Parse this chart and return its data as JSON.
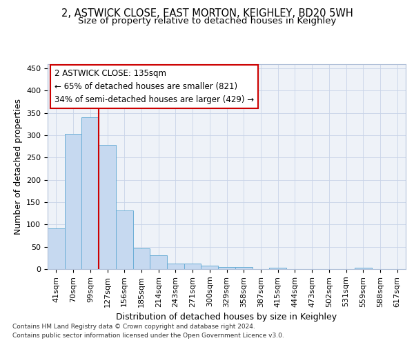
{
  "title1": "2, ASTWICK CLOSE, EAST MORTON, KEIGHLEY, BD20 5WH",
  "title2": "Size of property relative to detached houses in Keighley",
  "xlabel": "Distribution of detached houses by size in Keighley",
  "ylabel": "Number of detached properties",
  "categories": [
    "41sqm",
    "70sqm",
    "99sqm",
    "127sqm",
    "156sqm",
    "185sqm",
    "214sqm",
    "243sqm",
    "271sqm",
    "300sqm",
    "329sqm",
    "358sqm",
    "387sqm",
    "415sqm",
    "444sqm",
    "473sqm",
    "502sqm",
    "531sqm",
    "559sqm",
    "588sqm",
    "617sqm"
  ],
  "values": [
    91,
    303,
    340,
    278,
    131,
    47,
    31,
    13,
    13,
    8,
    5,
    5,
    0,
    3,
    0,
    0,
    0,
    0,
    3,
    0,
    0
  ],
  "bar_color": "#c6d9f0",
  "bar_edgecolor": "#6baed6",
  "bg_color": "#eef2f8",
  "vline_x_idx": 3,
  "vline_color": "#cc0000",
  "annotation_title": "2 ASTWICK CLOSE: 135sqm",
  "annotation_line2": "← 65% of detached houses are smaller (821)",
  "annotation_line3": "34% of semi-detached houses are larger (429) →",
  "annotation_box_facecolor": "#ffffff",
  "annotation_box_edgecolor": "#cc0000",
  "footer1": "Contains HM Land Registry data © Crown copyright and database right 2024.",
  "footer2": "Contains public sector information licensed under the Open Government Licence v3.0.",
  "ylim": [
    0,
    460
  ],
  "yticks": [
    0,
    50,
    100,
    150,
    200,
    250,
    300,
    350,
    400,
    450
  ],
  "title1_fontsize": 10.5,
  "title2_fontsize": 9.5,
  "ylabel_fontsize": 9,
  "xlabel_fontsize": 9,
  "tick_fontsize": 8,
  "footer_fontsize": 6.5
}
